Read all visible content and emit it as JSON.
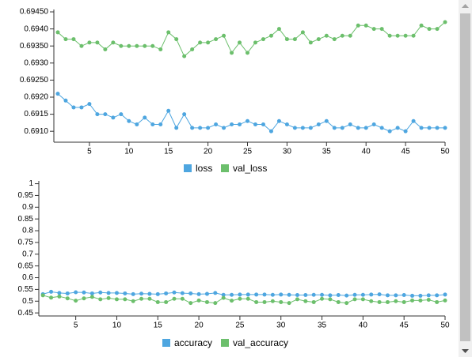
{
  "chart_data": [
    {
      "type": "line",
      "x": [
        1,
        2,
        3,
        4,
        5,
        6,
        7,
        8,
        9,
        10,
        11,
        12,
        13,
        14,
        15,
        16,
        17,
        18,
        19,
        20,
        21,
        22,
        23,
        24,
        25,
        26,
        27,
        28,
        29,
        30,
        31,
        32,
        33,
        34,
        35,
        36,
        37,
        38,
        39,
        40,
        41,
        42,
        43,
        44,
        45,
        46,
        47,
        48,
        49,
        50
      ],
      "series": [
        {
          "name": "loss",
          "color": "#4ea6e0",
          "values": [
            0.6921,
            0.6919,
            0.6917,
            0.6917,
            0.6918,
            0.6915,
            0.6915,
            0.6914,
            0.6915,
            0.6913,
            0.6912,
            0.6914,
            0.6912,
            0.6912,
            0.6916,
            0.6911,
            0.6915,
            0.6911,
            0.6911,
            0.6911,
            0.6912,
            0.6911,
            0.6912,
            0.6912,
            0.6913,
            0.6912,
            0.6912,
            0.691,
            0.6913,
            0.6912,
            0.6911,
            0.6911,
            0.6911,
            0.6912,
            0.6913,
            0.6911,
            0.6911,
            0.6912,
            0.6911,
            0.6911,
            0.6912,
            0.6911,
            0.691,
            0.6911,
            0.691,
            0.6913,
            0.6911,
            0.6911,
            0.6911,
            0.6911
          ]
        },
        {
          "name": "val_loss",
          "color": "#6cbf6c",
          "values": [
            0.6939,
            0.6937,
            0.6937,
            0.6935,
            0.6936,
            0.6936,
            0.6934,
            0.6936,
            0.6935,
            0.6935,
            0.6935,
            0.6935,
            0.6935,
            0.6934,
            0.6939,
            0.6937,
            0.6932,
            0.6934,
            0.6936,
            0.6936,
            0.6937,
            0.6938,
            0.6933,
            0.6936,
            0.6933,
            0.6936,
            0.6937,
            0.6938,
            0.694,
            0.6937,
            0.6937,
            0.6939,
            0.6936,
            0.6937,
            0.6938,
            0.6937,
            0.6938,
            0.6938,
            0.6941,
            0.6941,
            0.694,
            0.694,
            0.6938,
            0.6938,
            0.6938,
            0.6938,
            0.6941,
            0.694,
            0.694,
            0.6942
          ]
        }
      ],
      "xlim": [
        0.5,
        50
      ],
      "xticks": [
        5,
        10,
        15,
        20,
        25,
        30,
        35,
        40,
        45,
        50
      ],
      "ylim": [
        0.69068,
        0.69457
      ],
      "yticks": [
        {
          "value": 0.691,
          "label": "0.6910"
        },
        0.6915,
        {
          "value": 0.692,
          "label": "0.6920"
        },
        {
          "value": 0.6925,
          "label": "0.69250"
        },
        {
          "value": 0.693,
          "label": "0.6930"
        },
        {
          "value": 0.6935,
          "label": "0.69350"
        },
        {
          "value": 0.694,
          "label": "0.6940"
        },
        {
          "value": 0.6945,
          "label": "0.69450"
        }
      ]
    },
    {
      "type": "line",
      "x": [
        1,
        2,
        3,
        4,
        5,
        6,
        7,
        8,
        9,
        10,
        11,
        12,
        13,
        14,
        15,
        16,
        17,
        18,
        19,
        20,
        21,
        22,
        23,
        24,
        25,
        26,
        27,
        28,
        29,
        30,
        31,
        32,
        33,
        34,
        35,
        36,
        37,
        38,
        39,
        40,
        41,
        42,
        43,
        44,
        45,
        46,
        47,
        48,
        49,
        50
      ],
      "series": [
        {
          "name": "accuracy",
          "color": "#4ea6e0",
          "values": [
            0.53,
            0.54,
            0.535,
            0.533,
            0.538,
            0.537,
            0.533,
            0.537,
            0.535,
            0.535,
            0.533,
            0.53,
            0.532,
            0.531,
            0.53,
            0.533,
            0.537,
            0.534,
            0.533,
            0.53,
            0.531,
            0.535,
            0.527,
            0.527,
            0.528,
            0.528,
            0.528,
            0.528,
            0.527,
            0.528,
            0.527,
            0.526,
            0.526,
            0.527,
            0.527,
            0.525,
            0.526,
            0.524,
            0.527,
            0.527,
            0.528,
            0.529,
            0.525,
            0.525,
            0.526,
            0.523,
            0.523,
            0.525,
            0.525,
            0.528
          ]
        },
        {
          "name": "val_accuracy",
          "color": "#6cbf6c",
          "values": [
            0.525,
            0.515,
            0.52,
            0.512,
            0.502,
            0.512,
            0.518,
            0.508,
            0.513,
            0.508,
            0.508,
            0.5,
            0.51,
            0.51,
            0.496,
            0.496,
            0.51,
            0.51,
            0.492,
            0.503,
            0.496,
            0.492,
            0.514,
            0.502,
            0.51,
            0.51,
            0.496,
            0.496,
            0.5,
            0.496,
            0.492,
            0.508,
            0.5,
            0.496,
            0.51,
            0.508,
            0.496,
            0.492,
            0.508,
            0.508,
            0.5,
            0.496,
            0.496,
            0.5,
            0.496,
            0.503,
            0.503,
            0.506,
            0.496,
            0.503
          ]
        }
      ],
      "xlim": [
        0.5,
        50
      ],
      "xticks": [
        5,
        10,
        15,
        20,
        25,
        30,
        35,
        40,
        45,
        50
      ],
      "ylim": [
        0.437,
        1.012
      ],
      "yticks": [
        0.45,
        0.5,
        0.55,
        0.6,
        0.65,
        0.7,
        0.75,
        0.8,
        0.85,
        0.9,
        0.95,
        1
      ]
    }
  ]
}
